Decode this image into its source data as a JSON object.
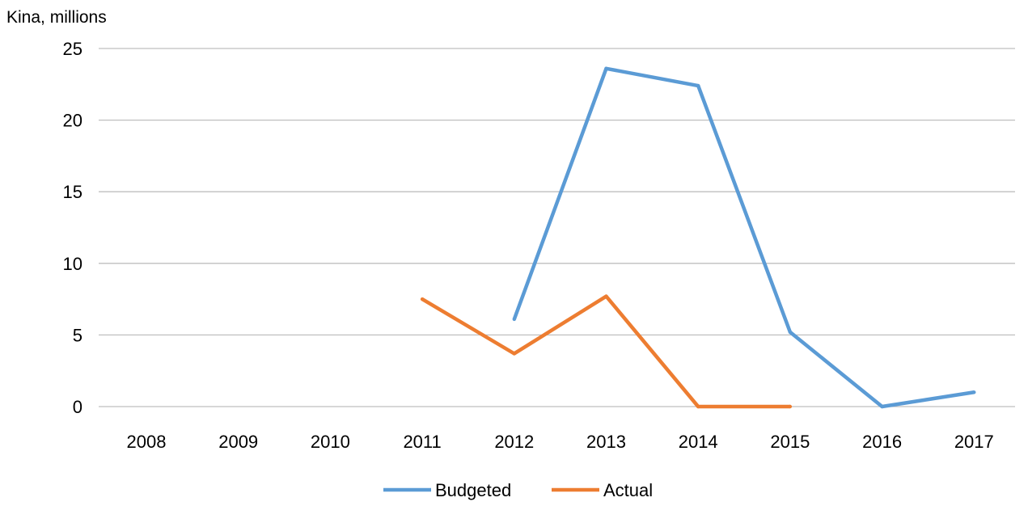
{
  "chart_data": {
    "type": "line",
    "ylabel": "Kina, millions",
    "xlabel": "",
    "title": "",
    "x": [
      "2008",
      "2009",
      "2010",
      "2011",
      "2012",
      "2013",
      "2014",
      "2015",
      "2016",
      "2017"
    ],
    "ylim": [
      0,
      25
    ],
    "yticks": [
      0,
      5,
      10,
      15,
      20,
      25
    ],
    "grid": true,
    "legend_position": "bottom",
    "series": [
      {
        "name": "Budgeted",
        "color": "#5b9bd5",
        "values": [
          null,
          null,
          null,
          null,
          6.1,
          23.6,
          22.4,
          5.2,
          0,
          1.0
        ]
      },
      {
        "name": "Actual",
        "color": "#ed7d31",
        "values": [
          null,
          null,
          null,
          7.5,
          3.7,
          7.7,
          0,
          0,
          null,
          null
        ]
      }
    ]
  }
}
